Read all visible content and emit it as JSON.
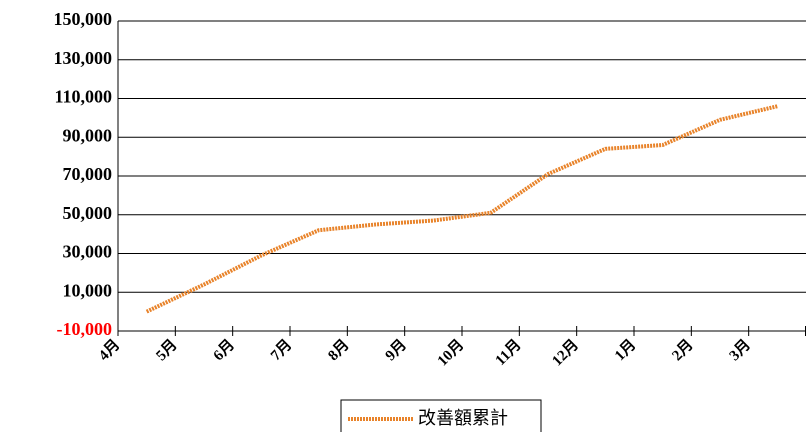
{
  "chart_data": {
    "type": "line",
    "categories": [
      "4月",
      "5月",
      "6月",
      "7月",
      "8月",
      "9月",
      "10月",
      "11月",
      "12月",
      "1月",
      "2月",
      "3月"
    ],
    "series": [
      {
        "name": "改善額累計",
        "color": "#e8832a",
        "values": [
          0,
          14000,
          29000,
          42000,
          45000,
          47000,
          51000,
          71000,
          84000,
          86000,
          99000,
          106000
        ]
      }
    ],
    "ylim": [
      -10000,
      150000
    ],
    "yticks": [
      {
        "value": -10000,
        "label": "-10,000"
      },
      {
        "value": 10000,
        "label": "10,000"
      },
      {
        "value": 30000,
        "label": "30,000"
      },
      {
        "value": 50000,
        "label": "50,000"
      },
      {
        "value": 70000,
        "label": "70,000"
      },
      {
        "value": 90000,
        "label": "90,000"
      },
      {
        "value": 110000,
        "label": "110,000"
      },
      {
        "value": 130000,
        "label": "130,000"
      },
      {
        "value": 150000,
        "label": "150,000"
      }
    ],
    "negative_tick_color": "#ff0000",
    "grid": true
  }
}
